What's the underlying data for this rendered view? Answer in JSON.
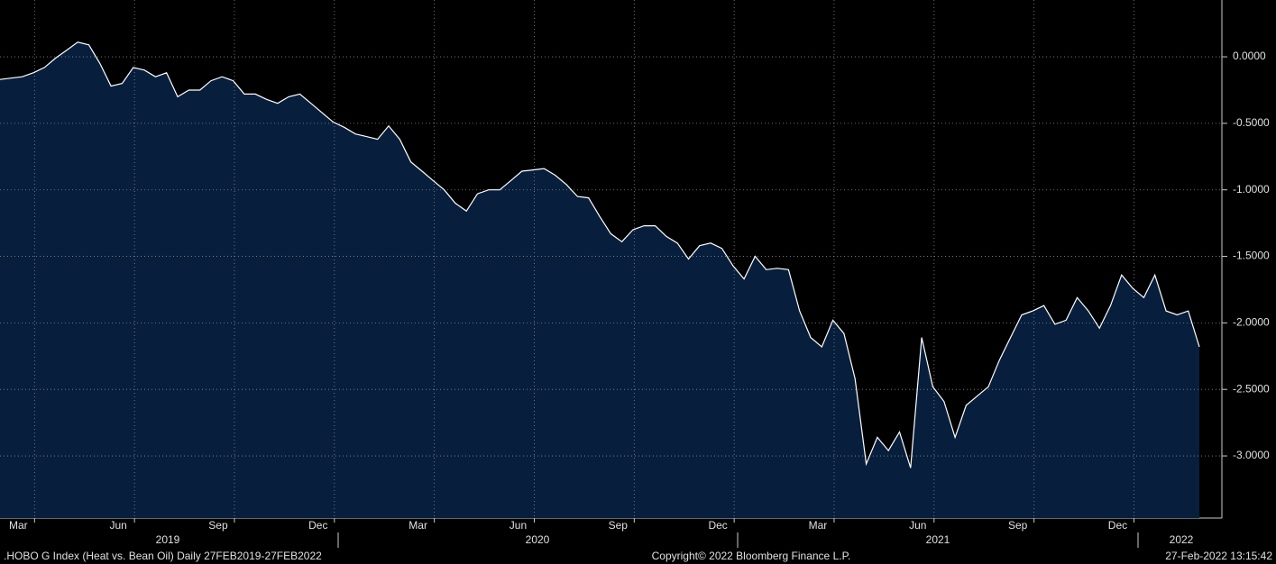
{
  "chart_data": {
    "type": "area",
    "footer_left": ".HOBO G Index (Heat vs. Bean Oil)  Daily 27FEB2019-27FEB2022",
    "footer_center": "Copyright© 2022 Bloomberg Finance L.P.",
    "footer_right": "27-Feb-2022 13:15:42",
    "years": [
      "2019",
      "2020",
      "2021",
      "2022"
    ],
    "categories": [
      null,
      "Mar",
      null,
      null,
      null,
      null,
      null,
      null,
      null,
      null,
      "Jun",
      null,
      null,
      null,
      null,
      null,
      null,
      null,
      null,
      "Sep",
      null,
      null,
      null,
      null,
      null,
      null,
      null,
      null,
      "Dec",
      null,
      null,
      null,
      null,
      null,
      null,
      null,
      null,
      "Mar",
      null,
      null,
      null,
      null,
      null,
      null,
      null,
      null,
      "Jun",
      null,
      null,
      null,
      null,
      null,
      null,
      null,
      null,
      "Sep",
      null,
      null,
      null,
      null,
      null,
      null,
      null,
      null,
      "Dec",
      null,
      null,
      null,
      null,
      null,
      null,
      null,
      null,
      "Mar",
      null,
      null,
      null,
      null,
      null,
      null,
      null,
      null,
      "Jun",
      null,
      null,
      null,
      null,
      null,
      null,
      null,
      null,
      "Sep",
      null,
      null,
      null,
      null,
      null,
      null,
      null,
      null,
      "Dec",
      null,
      null,
      null,
      null,
      null,
      null,
      null,
      null
    ],
    "values": [
      -0.17,
      -0.16,
      -0.15,
      -0.12,
      -0.08,
      -0.01,
      0.05,
      0.11,
      0.09,
      -0.05,
      -0.22,
      -0.2,
      -0.08,
      -0.1,
      -0.15,
      -0.12,
      -0.3,
      -0.25,
      -0.25,
      -0.18,
      -0.15,
      -0.18,
      -0.28,
      -0.28,
      -0.32,
      -0.35,
      -0.3,
      -0.28,
      -0.35,
      -0.42,
      -0.49,
      -0.53,
      -0.58,
      -0.6,
      -0.62,
      -0.52,
      -0.62,
      -0.79,
      -0.86,
      -0.93,
      -1.0,
      -1.1,
      -1.16,
      -1.03,
      -1.0,
      -1.0,
      -0.93,
      -0.86,
      -0.85,
      -0.84,
      -0.89,
      -0.96,
      -1.05,
      -1.06,
      -1.2,
      -1.33,
      -1.39,
      -1.3,
      -1.27,
      -1.27,
      -1.35,
      -1.4,
      -1.52,
      -1.42,
      -1.4,
      -1.44,
      -1.57,
      -1.67,
      -1.5,
      -1.6,
      -1.59,
      -1.6,
      -1.91,
      -2.11,
      -2.18,
      -1.98,
      -2.08,
      -2.42,
      -3.06,
      -2.86,
      -2.96,
      -2.82,
      -3.09,
      -2.11,
      -2.48,
      -2.59,
      -2.86,
      -2.62,
      -2.55,
      -2.48,
      -2.28,
      -2.11,
      -1.94,
      -1.91,
      -1.87,
      -2.01,
      -1.98,
      -1.81,
      -1.91,
      -2.04,
      -1.87,
      -1.64,
      -1.74,
      -1.81,
      -1.64,
      -1.91,
      -1.94,
      -1.91,
      -2.18
    ],
    "color": "#071f3d",
    "line_color": "#ffffff",
    "ylim": [
      -3.467,
      0.427
    ],
    "yticks": [
      {
        "value": 0,
        "label": "0.0000"
      },
      {
        "value": -0.5,
        "label": "-0.5000"
      },
      {
        "value": -1,
        "label": "-1.0000"
      },
      {
        "value": -1.5,
        "label": "-1.5000"
      },
      {
        "value": -2,
        "label": "-2.0000"
      },
      {
        "value": -2.5,
        "label": "-2.5000"
      },
      {
        "value": -3,
        "label": "-3.0000"
      }
    ],
    "grid": true
  }
}
